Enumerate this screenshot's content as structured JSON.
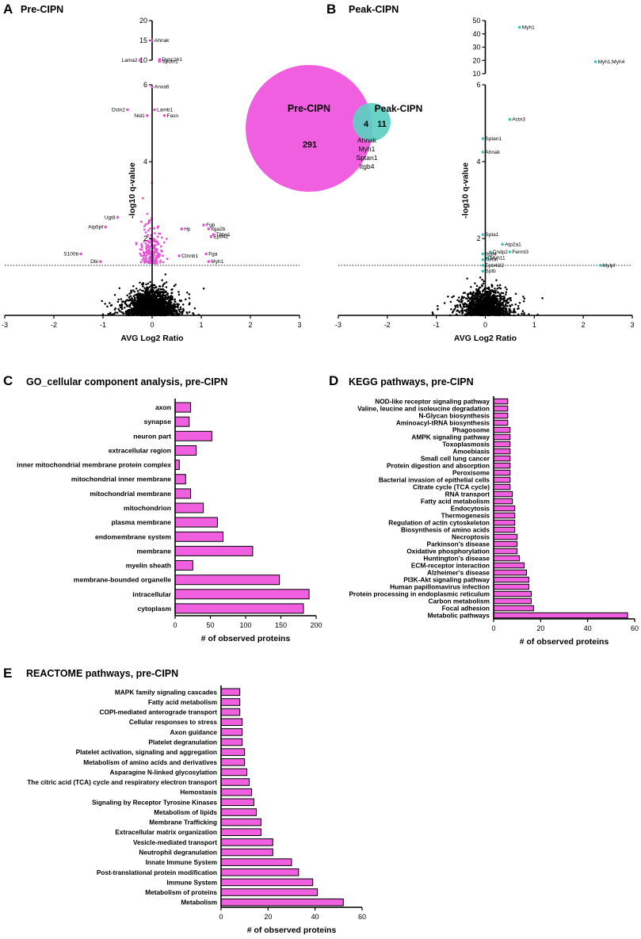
{
  "figure": {
    "panels": [
      {
        "letter": "A",
        "title": "Pre-CIPN"
      },
      {
        "letter": "B",
        "title": "Peak-CIPN"
      },
      {
        "letter": "C",
        "title": "GO_cellular component analysis, pre-CIPN"
      },
      {
        "letter": "D",
        "title": "KEGG pathways, pre-CIPN"
      },
      {
        "letter": "E",
        "title": "REACTOME pathways, pre-CIPN"
      }
    ]
  },
  "colors": {
    "pre": "#e455d6",
    "peak": "#3cc3b5",
    "bar": "#ef5fe0",
    "black": "#000000"
  },
  "venn": {
    "left_label": "Pre-CIPN",
    "right_label": "Peak-CIPN",
    "left_only": "291",
    "overlap": "4",
    "right_only": "11",
    "shared": [
      "Ahnak",
      "Myh1",
      "Sptan1",
      "Itgb4"
    ]
  },
  "chart_data": [
    {
      "type": "scatter",
      "panel": "A",
      "title": "Pre-CIPN",
      "xlabel": "AVG Log2 Ratio",
      "ylabel": "-log10 q-value",
      "xlim": [
        -3,
        3
      ],
      "x_ticks": [
        "-3",
        "-2",
        "-1",
        "0",
        "1",
        "2",
        "3"
      ],
      "y_ticks_lower": [
        "2",
        "4",
        "6"
      ],
      "y_ticks_upper": [
        "10",
        "15",
        "20"
      ],
      "y_break": [
        6,
        10
      ],
      "significance_threshold": 1.3,
      "labeled_points": [
        {
          "label": "Ahnak",
          "x": 0.0,
          "y": 15
        },
        {
          "label": "Dync1h1",
          "x": 0.15,
          "y": 10.2
        },
        {
          "label": "Lama2",
          "x": -0.25,
          "y": 10.0
        },
        {
          "label": "Sptan1",
          "x": 0.15,
          "y": 9.7
        },
        {
          "label": "Anxa6",
          "x": 0.0,
          "y": 5.95
        },
        {
          "label": "Dctn2",
          "x": -0.5,
          "y": 5.35
        },
        {
          "label": "Lamb1",
          "x": 0.05,
          "y": 5.35
        },
        {
          "label": "Nid1",
          "x": -0.1,
          "y": 5.2
        },
        {
          "label": "Fasn",
          "x": 0.25,
          "y": 5.2
        },
        {
          "label": "Ugt8",
          "x": -0.7,
          "y": 2.55
        },
        {
          "label": "Atp5pf",
          "x": -0.95,
          "y": 2.3
        },
        {
          "label": "Fgb",
          "x": 1.05,
          "y": 2.35
        },
        {
          "label": "Itga2b",
          "x": 1.15,
          "y": 2.25
        },
        {
          "label": "Hp",
          "x": 0.6,
          "y": 2.25
        },
        {
          "label": "Epb42",
          "x": 1.2,
          "y": 2.05
        },
        {
          "label": "Thbs1",
          "x": 1.25,
          "y": 2.1
        },
        {
          "label": "S100b",
          "x": -1.45,
          "y": 1.6
        },
        {
          "label": "Ctnnb1",
          "x": 0.55,
          "y": 1.55
        },
        {
          "label": "Fga",
          "x": 1.1,
          "y": 1.6
        },
        {
          "label": "Dbi",
          "x": -1.05,
          "y": 1.4
        },
        {
          "label": "Myh1",
          "x": 1.15,
          "y": 1.4
        }
      ]
    },
    {
      "type": "scatter",
      "panel": "B",
      "title": "Peak-CIPN",
      "xlabel": "AVG Log2 Ratio",
      "ylabel": "-log10 q-value",
      "xlim": [
        -3,
        3
      ],
      "x_ticks": [
        "-3",
        "-2",
        "-1",
        "0",
        "1",
        "2",
        "3"
      ],
      "y_ticks_lower": [
        "2",
        "4",
        "6"
      ],
      "y_ticks_upper": [
        "10",
        "20",
        "30",
        "40",
        "50"
      ],
      "y_break": [
        6,
        10
      ],
      "significance_threshold": 1.3,
      "labeled_points": [
        {
          "label": "Myh1",
          "x": 0.7,
          "y": 45
        },
        {
          "label": "Myh1;Myh4",
          "x": 2.25,
          "y": 19
        },
        {
          "label": "Actn3",
          "x": 0.5,
          "y": 5.1
        },
        {
          "label": "Sptan1",
          "x": -0.05,
          "y": 4.6
        },
        {
          "label": "Ahnak",
          "x": -0.05,
          "y": 4.25
        },
        {
          "label": "Spta1",
          "x": -0.05,
          "y": 2.1
        },
        {
          "label": "Atp2a1",
          "x": 0.35,
          "y": 1.85
        },
        {
          "label": "Cndp2",
          "x": 0.1,
          "y": 1.65
        },
        {
          "label": "Fermt3",
          "x": 0.5,
          "y": 1.65
        },
        {
          "label": "Itgb4",
          "x": -0.05,
          "y": 1.6
        },
        {
          "label": "Myh11",
          "x": 0.05,
          "y": 1.5
        },
        {
          "label": "Nefm",
          "x": -0.05,
          "y": 1.45
        },
        {
          "label": "Epb41l2",
          "x": -0.05,
          "y": 1.3
        },
        {
          "label": "Mylpf",
          "x": 2.35,
          "y": 1.3
        },
        {
          "label": "Sptb",
          "x": -0.05,
          "y": 1.15
        }
      ]
    },
    {
      "type": "bar",
      "orientation": "horizontal",
      "panel": "C",
      "title": "GO_cellular component analysis, pre-CIPN",
      "xlabel": "# of observed proteins",
      "xlim": [
        0,
        200
      ],
      "x_ticks": [
        "0",
        "50",
        "100",
        "150",
        "200"
      ],
      "categories": [
        "axon",
        "synapse",
        "neuron part",
        "extracellular region",
        "inner mitochondrial membrane protein complex",
        "mitochondrial inner membrane",
        "mitochondrial membrane",
        "mitochondrion",
        "plasma membrane",
        "endomembrane system",
        "membrane",
        "myelin sheath",
        "membrane-bounded organelle",
        "intracellular",
        "cytoplasm"
      ],
      "values": [
        22,
        20,
        52,
        30,
        6,
        15,
        22,
        40,
        60,
        68,
        110,
        25,
        148,
        190,
        182
      ]
    },
    {
      "type": "bar",
      "orientation": "horizontal",
      "panel": "D",
      "title": "KEGG pathways, pre-CIPN",
      "xlabel": "# of observed proteins",
      "xlim": [
        0,
        60
      ],
      "x_ticks": [
        "0",
        "20",
        "40",
        "60"
      ],
      "categories": [
        "NOD-like receptor signaling pathway",
        "Valine, leucine and isoleucine degradation",
        "N-Glycan biosynthesis",
        "Aminoacyl-tRNA biosynthesis",
        "Phagosome",
        "AMPK signaling pathway",
        "Toxoplasmosis",
        "Amoebiasis",
        "Small cell lung cancer",
        "Protein digestion and absorption",
        "Peroxisome",
        "Bacterial invasion of epithelial cells",
        "Citrate cycle (TCA cycle)",
        "RNA transport",
        "Fatty acid metabolism",
        "Endocytosis",
        "Thermogenesis",
        "Regulation of actin cytoskeleton",
        "Biosynthesis of amino acids",
        "Necroptosis",
        "Parkinson's disease",
        "Oxidative phosphorylation",
        "Huntington's disease",
        "ECM-receptor interaction",
        "Alzheimer's disease",
        "PI3K-Akt signaling pathway",
        "Human papillomavirus infection",
        "Protein processing in endoplasmic reticulum",
        "Carbon metabolism",
        "Focal adhesion",
        "Metabolic pathways"
      ],
      "values": [
        6,
        6,
        6,
        6,
        7,
        7,
        7,
        7,
        7,
        7,
        7,
        7,
        7,
        8,
        8,
        9,
        9,
        9,
        9,
        10,
        10,
        10,
        11,
        13,
        14,
        15,
        15,
        16,
        16,
        17,
        57
      ]
    },
    {
      "type": "bar",
      "orientation": "horizontal",
      "panel": "E",
      "title": "REACTOME pathways, pre-CIPN",
      "xlabel": "# of observed proteins",
      "xlim": [
        0,
        60
      ],
      "x_ticks": [
        "0",
        "20",
        "40",
        "60"
      ],
      "categories": [
        "MAPK family signaling cascades",
        "Fatty acid metabolism",
        "COPI-mediated anterograde transport",
        "Cellular responses to stress",
        "Axon guidance",
        "Platelet degranulation",
        "Platelet activation, signaling and aggregation",
        "Metabolism of amino acids and derivatives",
        "Asparagine N-linked glycosylation",
        "The citric acid (TCA) cycle and respiratory electron transport",
        "Hemostasis",
        "Signaling by Receptor Tyrosine Kinases",
        "Metabolism of lipids",
        "Membrane Trafficking",
        "Extracellular matrix organization",
        "Vesicle-mediated transport",
        "Neutrophil degranulation",
        "Innate Immune System",
        "Post-translational protein modification",
        "Immune System",
        "Metabolism of proteins",
        "Metabolism"
      ],
      "values": [
        8,
        8,
        8,
        9,
        9,
        9,
        10,
        10,
        11,
        12,
        13,
        14,
        15,
        17,
        17,
        22,
        22,
        30,
        33,
        39,
        41,
        52
      ]
    }
  ]
}
